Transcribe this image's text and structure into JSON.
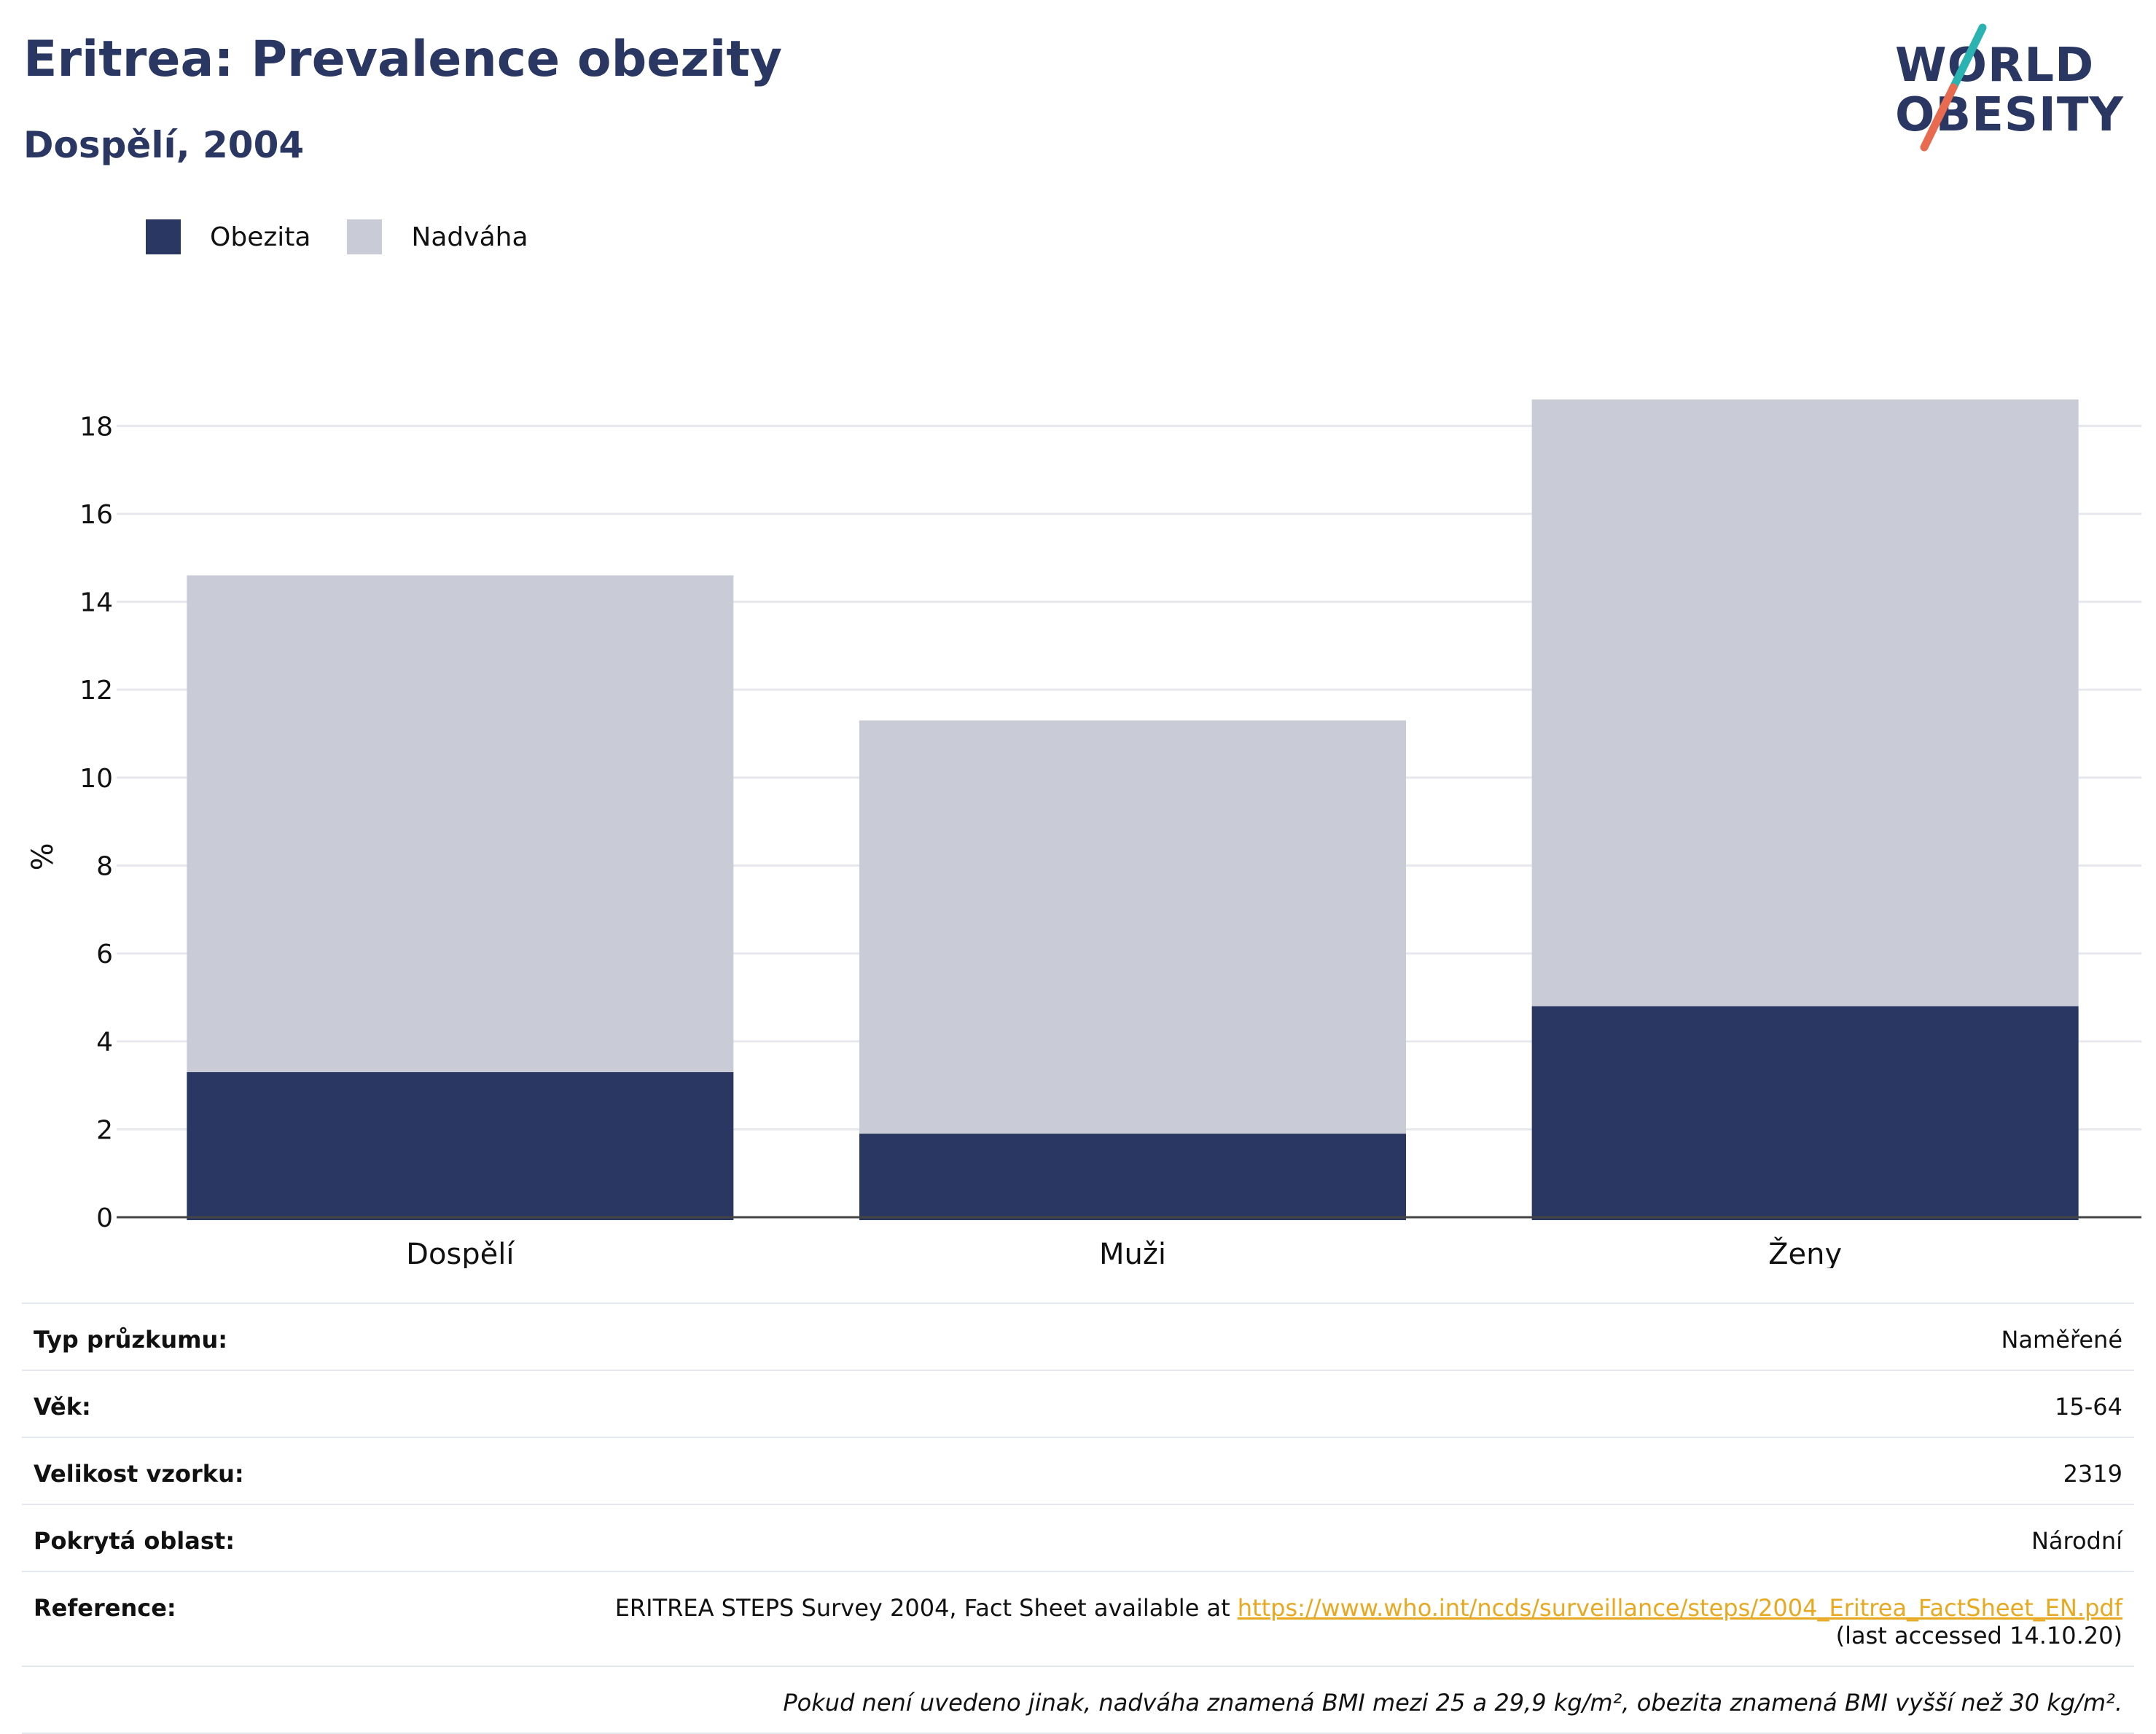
{
  "header": {
    "title": "Eritrea: Prevalence obezity",
    "subtitle": "Dospělí, 2004"
  },
  "logo": {
    "line1": "WORLD",
    "line2": "OBESITY",
    "accent_colors": [
      "#2bb3b1",
      "#e86a4f"
    ]
  },
  "legend": [
    {
      "label": "Obezita",
      "color": "#2a3763"
    },
    {
      "label": "Nadváha",
      "color": "#c9cbd6"
    }
  ],
  "chart_data": {
    "type": "bar",
    "stacked": true,
    "categories": [
      "Dospělí",
      "Muži",
      "Ženy"
    ],
    "series": [
      {
        "name": "Obezita",
        "color": "#2a3763",
        "values": [
          3.3,
          1.9,
          4.8
        ]
      },
      {
        "name": "Nadváha",
        "color": "#c9cbd6",
        "values": [
          11.3,
          9.4,
          13.8
        ]
      }
    ],
    "ylabel": "%",
    "ylim": [
      0,
      19
    ],
    "yticks": [
      0,
      2,
      4,
      6,
      8,
      10,
      12,
      14,
      16,
      18
    ],
    "grid": true
  },
  "info": {
    "rows": [
      {
        "key": "Typ průzkumu:",
        "value": "Naměřené"
      },
      {
        "key": "Věk:",
        "value": "15-64"
      },
      {
        "key": "Velikost vzorku:",
        "value": "2319"
      },
      {
        "key": "Pokrytá oblast:",
        "value": "Národní"
      }
    ],
    "reference": {
      "key": "Reference:",
      "text": "ERITREA STEPS Survey 2004, Fact Sheet available at ",
      "link": "https://www.who.int/ncds/surveillance/steps/2004_Eritrea_FactSheet_EN.pdf",
      "accessed": "(last accessed 14.10.20)"
    },
    "note": "Pokud není uvedeno jinak, nadváha znamená BMI mezi 25 a 29,9 kg/m², obezita znamená BMI vyšší než 30 kg/m²."
  }
}
